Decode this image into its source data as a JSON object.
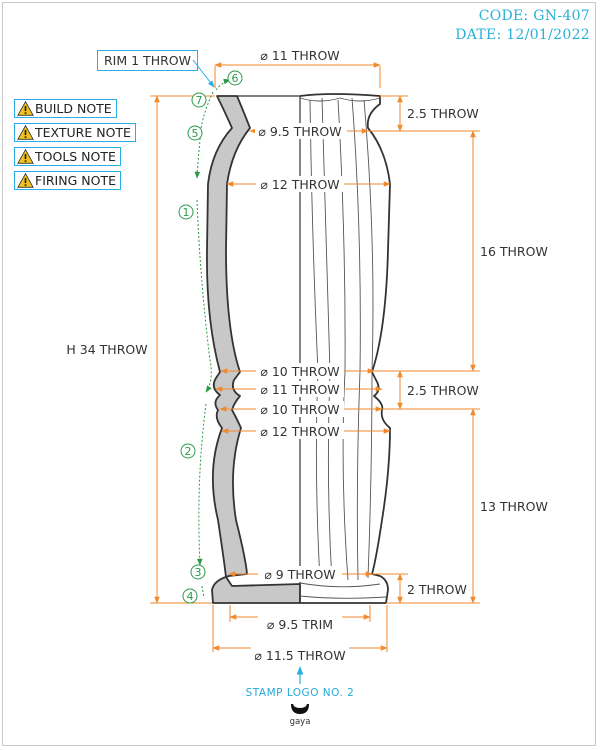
{
  "header": {
    "code": "CODE: GN-407",
    "date": "DATE: 12/01/2022"
  },
  "notes": [
    {
      "label": "BUILD NOTE",
      "icon": "warning-icon"
    },
    {
      "label": "TEXTURE NOTE",
      "icon": "warning-icon"
    },
    {
      "label": "TOOLS NOTE",
      "icon": "warning-icon"
    },
    {
      "label": "FIRING NOTE",
      "icon": "warning-icon"
    }
  ],
  "rim_label": "RIM 1 THROW",
  "dims": {
    "d_top": "⌀ 11 THROW",
    "d_neck": "⌀ 9.5 THROW",
    "d_shoulder": "⌀ 12 THROW",
    "d_waist1": "⌀ 10 THROW",
    "d_ring": "⌀ 11 THROW",
    "d_waist2": "⌀ 10 THROW",
    "d_hip": "⌀ 12 THROW",
    "d_foot": "⌀ 9 THROW",
    "d_trim": "⌀ 9.5 TRIM",
    "d_base": "⌀ 11.5 THROW",
    "h_total": "H 34 THROW",
    "v_neck": "2.5 THROW",
    "v_upper": "16 THROW",
    "v_ring": "2.5 THROW",
    "v_lower": "13 THROW",
    "v_foot": "2 THROW"
  },
  "steps": [
    "1",
    "2",
    "3",
    "4",
    "5",
    "6",
    "7"
  ],
  "stamp": {
    "label": "STAMP LOGO NO. 2",
    "logo_text": "gaya"
  },
  "colors": {
    "dimension": "#f08a2c",
    "callout": "#29aee6",
    "step": "#2a9a4a",
    "section_fill": "#c8c8c8"
  }
}
